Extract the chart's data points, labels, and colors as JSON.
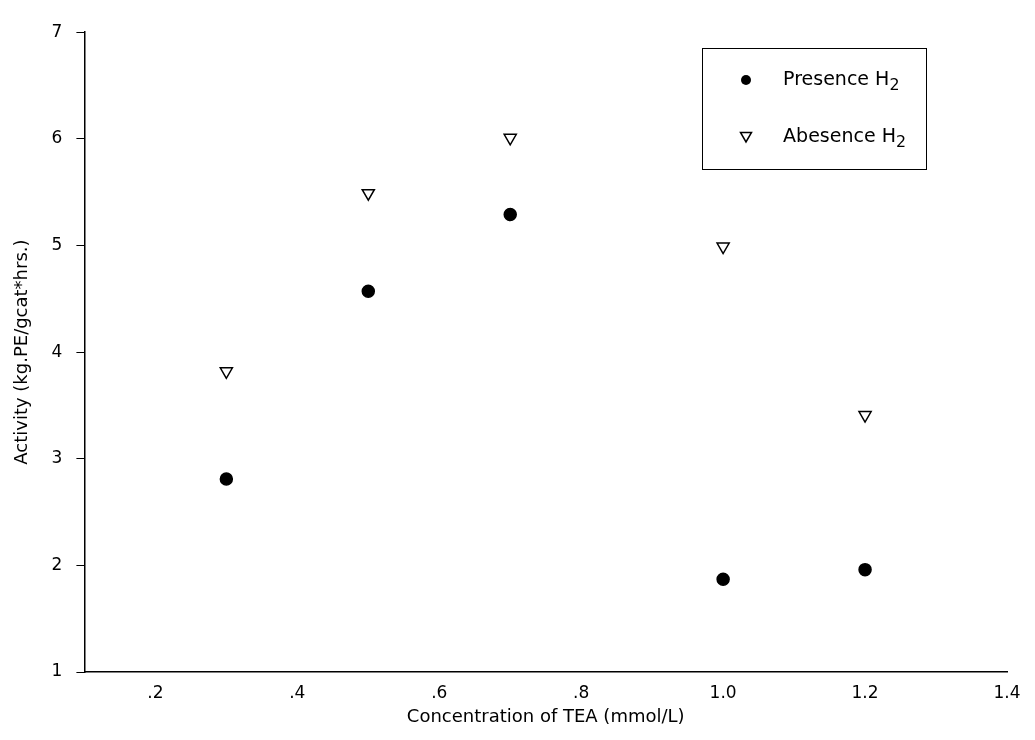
{
  "chart_data": {
    "type": "scatter",
    "xlabel": "Concentration of TEA (mmol/L)",
    "ylabel": "Activity (kg.PE/gcat*hrs.)",
    "xlim": [
      0.1,
      1.4
    ],
    "xticks": [
      {
        "value": 0.2,
        "label": ".2"
      },
      {
        "value": 0.4,
        "label": ".4"
      },
      {
        "value": 0.6,
        "label": ".6"
      },
      {
        "value": 0.8,
        "label": ".8"
      },
      {
        "value": 1.0,
        "label": "1.0"
      },
      {
        "value": 1.2,
        "label": "1.2"
      },
      {
        "value": 1.4,
        "label": "1.4"
      }
    ],
    "ylim": [
      1,
      7
    ],
    "yticks": [
      1,
      2,
      3,
      4,
      5,
      6,
      7
    ],
    "grid": false,
    "legend": "top right",
    "series": [
      {
        "name": "Presence H$_{2}$",
        "color": "#000000",
        "marker": "circle",
        "x": [
          0.3,
          0.5,
          0.7,
          1.0,
          1.2
        ],
        "values": [
          2.81,
          4.57,
          5.29,
          1.87,
          1.96
        ]
      },
      {
        "name": "Abesence H$_{2}$",
        "color": "#000000",
        "marker": "triangle",
        "x": [
          0.3,
          0.5,
          0.7,
          1.0,
          1.2
        ],
        "values": [
          3.82,
          5.49,
          6.01,
          4.99,
          3.41
        ]
      }
    ]
  }
}
